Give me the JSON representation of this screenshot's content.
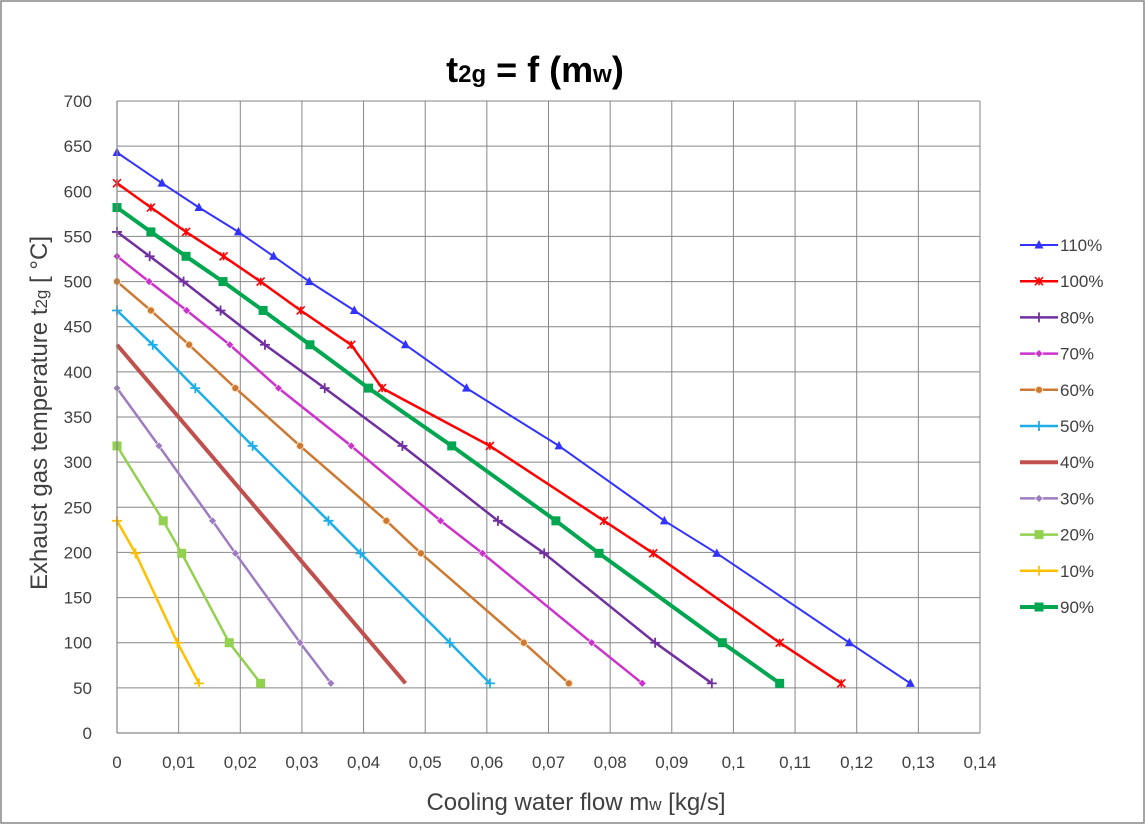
{
  "chart_data": {
    "type": "line",
    "title": {
      "main": "t",
      "sub": "2g",
      "rest": " = f (m",
      "sub2": "w",
      "close": ")"
    },
    "xlabel": {
      "text": "Cooling water flow  m",
      "sub": "w",
      "unit": " [kg/s]"
    },
    "ylabel": {
      "text": "Exhaust gas temperature  t",
      "sub": "2g",
      "unit": "  [ °C]"
    },
    "xlim": [
      0,
      0.14
    ],
    "ylim": [
      0,
      700
    ],
    "xticks": [
      "0",
      "0,01",
      "0,02",
      "0,03",
      "0,04",
      "0,05",
      "0,06",
      "0,07",
      "0,08",
      "0,09",
      "0,1",
      "0,11",
      "0,12",
      "0,13",
      "0,14"
    ],
    "yticks": [
      "0",
      "50",
      "100",
      "150",
      "200",
      "250",
      "300",
      "350",
      "400",
      "450",
      "500",
      "550",
      "600",
      "650",
      "700"
    ],
    "grid": true,
    "legend_position": "right",
    "series": [
      {
        "name": "110%",
        "color": "#3333ff",
        "marker": "triangle",
        "width": 2,
        "x": [
          0,
          0.0073,
          0.0133,
          0.0197,
          0.0254,
          0.0312,
          0.0385,
          0.0468,
          0.0567,
          0.0717,
          0.0888,
          0.0973,
          0.1188,
          0.1287
        ],
        "y": [
          643,
          609,
          582,
          555,
          528,
          500,
          468,
          430,
          382,
          318,
          235,
          199,
          100,
          55
        ]
      },
      {
        "name": "100%",
        "color": "#ff0000",
        "marker": "x",
        "width": 2.5,
        "x": [
          0,
          0.0055,
          0.0112,
          0.0173,
          0.0233,
          0.0298,
          0.038,
          0.043,
          0.0605,
          0.079,
          0.087,
          0.1075,
          0.1175
        ],
        "y": [
          609,
          582,
          555,
          528,
          500,
          468,
          430,
          382,
          318,
          235,
          199,
          100,
          55
        ]
      },
      {
        "name": "80%",
        "color": "#7030a0",
        "marker": "plus",
        "width": 2.5,
        "x": [
          0,
          0.0053,
          0.0108,
          0.0168,
          0.024,
          0.0337,
          0.0463,
          0.0618,
          0.0693,
          0.0873,
          0.0965
        ],
        "y": [
          555,
          528,
          500,
          468,
          430,
          382,
          318,
          235,
          199,
          100,
          55
        ]
      },
      {
        "name": "70%",
        "color": "#cc33cc",
        "marker": "diamond",
        "width": 2.5,
        "x": [
          0,
          0.0052,
          0.0113,
          0.0183,
          0.0262,
          0.038,
          0.0525,
          0.0593,
          0.077,
          0.0852
        ],
        "y": [
          528,
          500,
          468,
          430,
          382,
          318,
          235,
          199,
          100,
          55
        ]
      },
      {
        "name": "60%",
        "color": "#cc7a33",
        "marker": "circle",
        "width": 2.5,
        "x": [
          0,
          0.0055,
          0.0117,
          0.0192,
          0.0297,
          0.0437,
          0.0493,
          0.066,
          0.0733
        ],
        "y": [
          500,
          468,
          430,
          382,
          318,
          235,
          199,
          100,
          55
        ]
      },
      {
        "name": "50%",
        "color": "#1faee8",
        "marker": "plus",
        "width": 2.5,
        "x": [
          0,
          0.0058,
          0.0127,
          0.022,
          0.0343,
          0.0395,
          0.054,
          0.0605
        ],
        "y": [
          468,
          430,
          382,
          318,
          235,
          199,
          100,
          55
        ]
      },
      {
        "name": "40%",
        "color": "#c0504d",
        "marker": "none",
        "width": 4,
        "x": [
          0,
          0.0468
        ],
        "y": [
          430,
          55
        ]
      },
      {
        "name": "30%",
        "color": "#9e7cc1",
        "marker": "diamond",
        "width": 2.5,
        "x": [
          0,
          0.0068,
          0.0155,
          0.0192,
          0.0297,
          0.0347
        ],
        "y": [
          382,
          318,
          235,
          199,
          100,
          55
        ]
      },
      {
        "name": "20%",
        "color": "#92d050",
        "marker": "square",
        "width": 2.5,
        "x": [
          0,
          0.0075,
          0.0105,
          0.0182,
          0.0233
        ],
        "y": [
          318,
          235,
          199,
          100,
          55
        ]
      },
      {
        "name": "10%",
        "color": "#ffc000",
        "marker": "plus",
        "width": 2.5,
        "x": [
          0,
          0.003,
          0.0098,
          0.0133
        ],
        "y": [
          235,
          199,
          100,
          55
        ]
      },
      {
        "name": "90%",
        "color": "#00a650",
        "marker": "square",
        "width": 4,
        "x": [
          0,
          0.0055,
          0.0112,
          0.0172,
          0.0237,
          0.0313,
          0.0408,
          0.0543,
          0.0712,
          0.0782,
          0.0982,
          0.1075
        ],
        "y": [
          582,
          555,
          528,
          500,
          468,
          430,
          382,
          318,
          235,
          199,
          100,
          55
        ]
      }
    ]
  }
}
